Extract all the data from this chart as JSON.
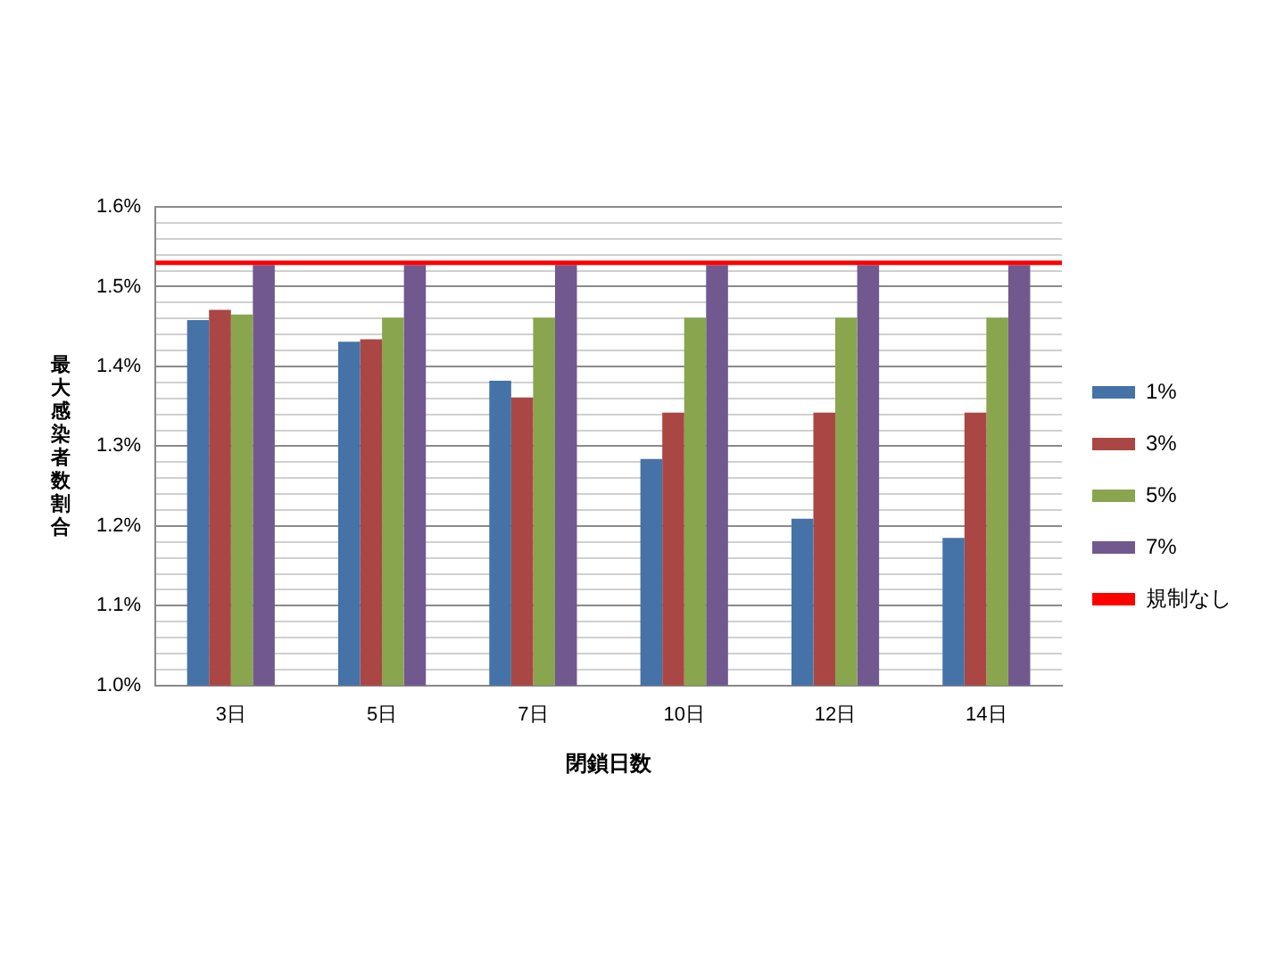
{
  "chart_data": {
    "type": "bar",
    "xlabel": "閉鎖日数",
    "ylabel": "最大感染者数割合",
    "categories": [
      "3日",
      "5日",
      "7日",
      "10日",
      "12日",
      "14日"
    ],
    "series": [
      {
        "name": "1%",
        "color": "#4572a7",
        "values": [
          1.458,
          1.431,
          1.382,
          1.284,
          1.209,
          1.185
        ]
      },
      {
        "name": "3%",
        "color": "#aa4643",
        "values": [
          1.471,
          1.434,
          1.361,
          1.342,
          1.342,
          1.342
        ]
      },
      {
        "name": "5%",
        "color": "#89a54e",
        "values": [
          1.465,
          1.461,
          1.461,
          1.461,
          1.461,
          1.461
        ]
      },
      {
        "name": "7%",
        "color": "#71588f",
        "values": [
          1.527,
          1.527,
          1.527,
          1.527,
          1.527,
          1.527
        ]
      }
    ],
    "ref_lines": [
      {
        "axis": "y",
        "value": 1.53,
        "label": "規制なし",
        "color": "#ff0000"
      }
    ],
    "ylim": [
      1.0,
      1.6
    ],
    "yticks": [
      "1.0%",
      {
        "value": 1.02,
        "label": null
      },
      {
        "value": 1.04,
        "label": null
      },
      {
        "value": 1.06,
        "label": null
      },
      {
        "value": 1.08,
        "label": null
      },
      {
        "value": 1.1,
        "label": "1.1%"
      },
      {
        "value": 1.12,
        "label": null
      },
      {
        "value": 1.14,
        "label": null
      },
      {
        "value": 1.16,
        "label": null
      },
      {
        "value": 1.18,
        "label": null
      },
      {
        "value": 1.2,
        "label": "1.2%"
      },
      {
        "value": 1.22,
        "label": null
      },
      {
        "value": 1.24,
        "label": null
      },
      {
        "value": 1.26,
        "label": null
      },
      {
        "value": 1.28,
        "label": null
      },
      {
        "value": 1.3,
        "label": "1.3%"
      },
      {
        "value": 1.32,
        "label": null
      },
      {
        "value": 1.34,
        "label": null
      },
      {
        "value": 1.36,
        "label": null
      },
      {
        "value": 1.38,
        "label": null
      },
      {
        "value": 1.4,
        "label": "1.4%"
      },
      {
        "value": 1.42,
        "label": null
      },
      {
        "value": 1.44,
        "label": null
      },
      {
        "value": 1.46,
        "label": null
      },
      {
        "value": 1.48,
        "label": null
      },
      {
        "value": 1.5,
        "label": "1.5%"
      },
      {
        "value": 1.52,
        "label": null
      },
      {
        "value": 1.54,
        "label": null
      },
      {
        "value": 1.56,
        "label": null
      },
      {
        "value": 1.58,
        "label": null
      },
      {
        "value": 1.6,
        "label": "1.6%"
      }
    ],
    "grid": "y",
    "legend": "right"
  }
}
